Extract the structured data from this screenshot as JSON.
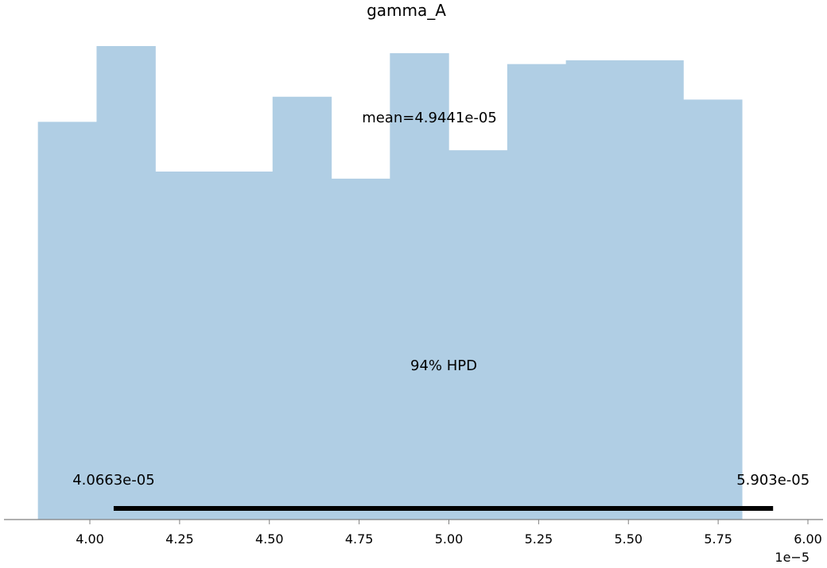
{
  "chart_data": {
    "type": "bar",
    "title": "gamma_A",
    "xlabel": "",
    "ylabel": "",
    "x_offset_label": "1e−5",
    "xlim": [
      3.82,
      6.0
    ],
    "x_ticks": [
      4.0,
      4.25,
      4.5,
      4.75,
      5.0,
      5.25,
      5.5,
      5.75,
      6.0
    ],
    "x_tick_labels": [
      "4.00",
      "4.25",
      "4.50",
      "4.75",
      "5.00",
      "5.25",
      "5.50",
      "5.75",
      "6.00"
    ],
    "bin_edges": [
      3.8553,
      4.0187,
      4.1821,
      4.3455,
      4.5089,
      4.6723,
      4.8357,
      4.9991,
      5.1625,
      5.3259,
      5.4893,
      5.6527,
      5.8161
    ],
    "values": [
      0.84,
      1.0,
      0.735,
      0.735,
      0.893,
      0.72,
      0.985,
      0.78,
      0.962,
      0.97,
      0.97,
      0.887
    ],
    "ylim": [
      0,
      1.0
    ],
    "bar_color": "#b0cee4",
    "mean_label": "mean=4.9441e-05",
    "hpd": {
      "label": "94% HPD",
      "low": 4.0663,
      "high": 5.903,
      "low_label": "4.0663e-05",
      "high_label": "5.903e-05",
      "line_color": "#000000"
    },
    "grid": false,
    "legend": "none"
  }
}
